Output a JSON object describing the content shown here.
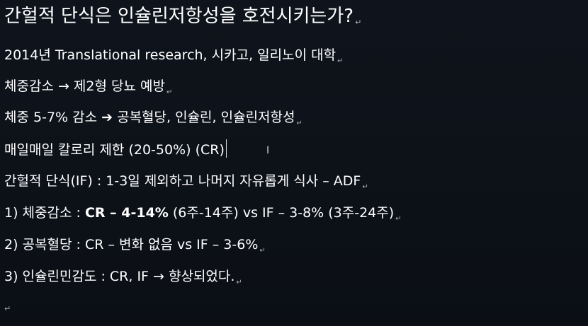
{
  "document": {
    "title": "간헐적 단식은 인슐린저항성을 호전시키는가?",
    "line1": "2014년 Translational research, 시카고, 일리노이 대학",
    "line2": "체중감소 → 제2형 당뇨 예방",
    "line3": "체중 5-7% 감소 ➔ 공복혈당, 인슐린, 인슐린저항성",
    "line4": "매일매일 칼로리 제한 (20-50%) (CR)",
    "line5": "간헐적 단식(IF) : 1-3일 제외하고 나머지 자유롭게 식사 – ADF",
    "line6": {
      "prefix": "1) 체중감소 : ",
      "bold": "CR – 4-14%",
      "suffix": " (6주-14주) vs IF – 3-8% (3주-24주)"
    },
    "line7": "2) 공복혈당 : CR – 변화 없음 vs IF – 3-6%",
    "line8": "3) 인슐린민감도 : CR, IF → 향상되었다.",
    "paragraph_mark": "↵",
    "cursor_symbol": "I"
  }
}
